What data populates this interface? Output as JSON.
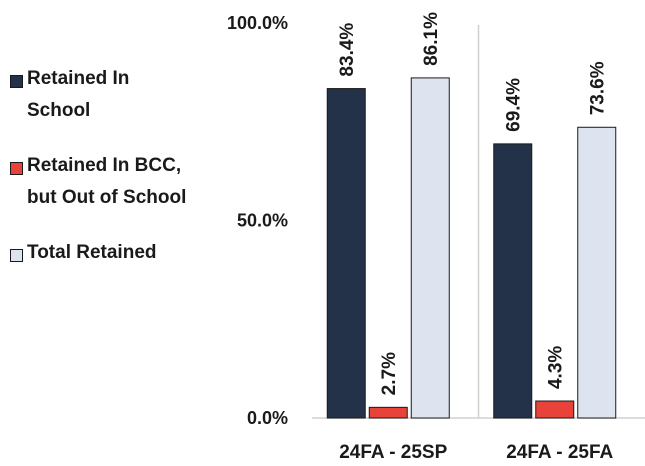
{
  "chart_data": {
    "type": "bar",
    "categories": [
      "24FA - 25SP",
      "24FA - 25FA"
    ],
    "series": [
      {
        "name": "Retained In School",
        "values": [
          83.4,
          69.4
        ],
        "labels": [
          "83.4%",
          "69.4%"
        ],
        "color": "#233249"
      },
      {
        "name": "Retained In BCC, but Out of School",
        "values": [
          2.7,
          4.3
        ],
        "labels": [
          "2.7%",
          "4.3%"
        ],
        "color": "#e8433a"
      },
      {
        "name": "Total Retained",
        "values": [
          86.1,
          73.6
        ],
        "labels": [
          "86.1%",
          "73.6%"
        ],
        "color": "#dde4ef"
      }
    ],
    "ylim": [
      0,
      100
    ],
    "yticks": [
      {
        "value": 0,
        "label": "0.0%"
      },
      {
        "value": 50,
        "label": "50.0%"
      },
      {
        "value": 100,
        "label": "100.0%"
      }
    ],
    "legend_position": "left",
    "grid": false
  }
}
